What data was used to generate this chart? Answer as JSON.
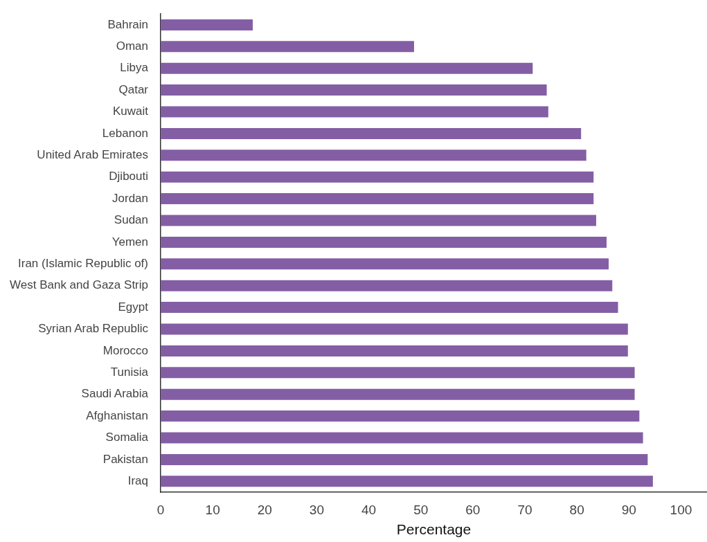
{
  "chart_data": {
    "type": "bar",
    "orientation": "horizontal",
    "xlabel": "Percentage",
    "categories": [
      "Bahrain",
      "Oman",
      "Libya",
      "Qatar",
      "Kuwait",
      "Lebanon",
      "United Arab Emirates",
      "Djibouti",
      "Jordan",
      "Sudan",
      "Yemen",
      "Iran (Islamic Republic of)",
      "West Bank and Gaza Strip",
      "Egypt",
      "Syrian Arab Republic",
      "Morocco",
      "Tunisia",
      "Saudi Arabia",
      "Afghanistan",
      "Somalia",
      "Pakistan",
      "Iraq"
    ],
    "values": [
      17.7,
      48.7,
      71.5,
      74.2,
      74.5,
      80.8,
      81.8,
      83.2,
      83.2,
      83.7,
      85.7,
      86.1,
      86.8,
      87.9,
      89.8,
      89.8,
      91.1,
      91.1,
      92.0,
      92.7,
      93.6,
      94.6
    ],
    "color": "#845ea5",
    "xlim": [
      0,
      105
    ],
    "xticks": [
      0,
      10,
      20,
      30,
      40,
      50,
      60,
      70,
      80,
      90,
      100
    ],
    "grid": false,
    "legend": false
  }
}
